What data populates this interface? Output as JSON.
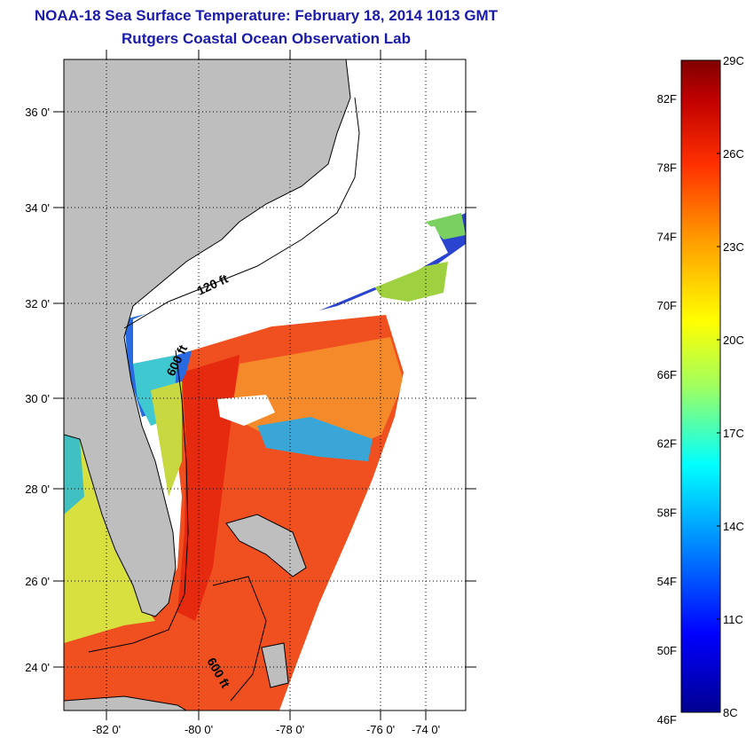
{
  "header": {
    "title": "NOAA-18 Sea Surface Temperature:  February 18, 2014 1013 GMT",
    "subtitle": "Rutgers Coastal Ocean Observation Lab"
  },
  "map": {
    "lat_labels": [
      "36 0'",
      "34 0'",
      "32 0'",
      "30 0'",
      "28 0'",
      "26 0'",
      "24 0'"
    ],
    "lon_labels": [
      "-82 0'",
      "-80 0'",
      "-78 0'",
      "-76 0'",
      "-74 0'"
    ],
    "contour_labels": [
      "120 ft",
      "600 ft",
      "600 ft"
    ],
    "colors": {
      "land": "#bebebe",
      "cloud": "#ffffff",
      "warm_sst": "#f04a18",
      "cool_sst": "#2a3cd8"
    }
  },
  "colorbar": {
    "fahrenheit_labels": [
      "82F",
      "78F",
      "74F",
      "70F",
      "66F",
      "62F",
      "58F",
      "54F",
      "50F",
      "46F"
    ],
    "celsius_labels": [
      "29C",
      "26C",
      "23C",
      "20C",
      "17C",
      "14C",
      "11C",
      "8C"
    ],
    "range_c": [
      8,
      29
    ],
    "colormap": [
      "#00008f",
      "#0000ff",
      "#00a0ff",
      "#00ffff",
      "#a0ff60",
      "#ffff00",
      "#ffa000",
      "#ff3000",
      "#c00000",
      "#800000"
    ]
  }
}
